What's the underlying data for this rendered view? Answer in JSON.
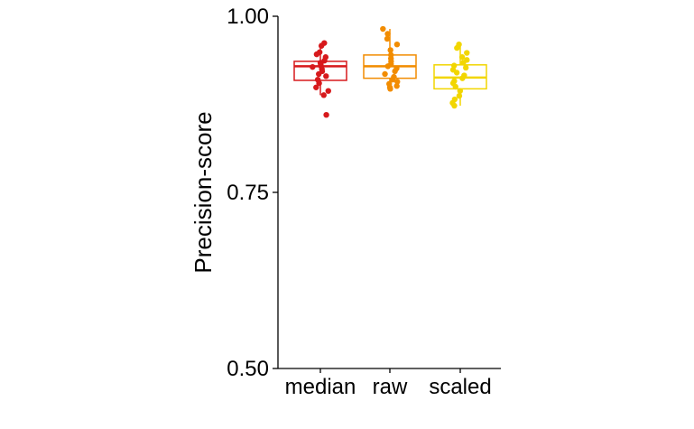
{
  "chart_data": {
    "type": "boxplot",
    "title": "",
    "xlabel": "",
    "ylabel": "Precision-score",
    "ylim": [
      0.5,
      1.0
    ],
    "yticks": [
      "0.50",
      "0.75",
      "1.00"
    ],
    "categories": [
      "median",
      "raw",
      "scaled"
    ],
    "grid": false,
    "legend": "none",
    "colors": [
      "#d7191c",
      "#f28c00",
      "#f2d600"
    ],
    "boxes": [
      {
        "name": "median",
        "min": 0.888,
        "q1": 0.909,
        "median": 0.929,
        "q3": 0.936,
        "max": 0.962
      },
      {
        "name": "raw",
        "min": 0.897,
        "q1": 0.912,
        "median": 0.929,
        "q3": 0.945,
        "max": 0.982
      },
      {
        "name": "scaled",
        "min": 0.873,
        "q1": 0.897,
        "median": 0.913,
        "q3": 0.931,
        "max": 0.96
      }
    ],
    "points": [
      {
        "name": "median",
        "values": [
          0.962,
          0.958,
          0.949,
          0.946,
          0.942,
          0.937,
          0.934,
          0.932,
          0.93,
          0.928,
          0.925,
          0.922,
          0.918,
          0.915,
          0.91,
          0.905,
          0.899,
          0.894,
          0.888,
          0.86
        ]
      },
      {
        "name": "raw",
        "values": [
          0.982,
          0.975,
          0.968,
          0.96,
          0.952,
          0.945,
          0.94,
          0.936,
          0.932,
          0.929,
          0.926,
          0.922,
          0.918,
          0.914,
          0.91,
          0.907,
          0.904,
          0.901,
          0.899,
          0.897
        ]
      },
      {
        "name": "scaled",
        "values": [
          0.96,
          0.955,
          0.948,
          0.942,
          0.938,
          0.934,
          0.93,
          0.927,
          0.924,
          0.92,
          0.916,
          0.912,
          0.908,
          0.905,
          0.9,
          0.894,
          0.887,
          0.882,
          0.877,
          0.873
        ]
      }
    ]
  }
}
